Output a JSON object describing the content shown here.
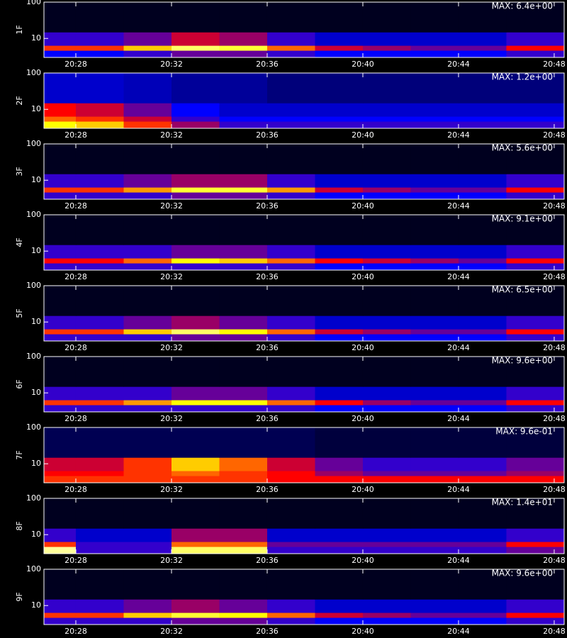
{
  "chart_data": [
    {
      "type": "heatmap",
      "ylabel": "1F",
      "annotation": "MAX: 6.4e+00",
      "x": [
        "20:27",
        "20:29",
        "20:31",
        "20:33",
        "20:35",
        "20:37",
        "20:39",
        "20:41",
        "20:43",
        "20:45",
        "20:47"
      ],
      "y": [
        4,
        5.5,
        7.5,
        30
      ],
      "z": [
        [
          0.25,
          0.25,
          0.3,
          0.35,
          0.35,
          0.3,
          0.25,
          0.25,
          0.25,
          0.25,
          0.3
        ],
        [
          0.55,
          0.55,
          0.7,
          0.85,
          0.8,
          0.6,
          0.45,
          0.4,
          0.35,
          0.35,
          0.5
        ],
        [
          0.3,
          0.3,
          0.35,
          0.45,
          0.4,
          0.3,
          0.2,
          0.2,
          0.2,
          0.2,
          0.3
        ],
        [
          0.03,
          0.03,
          0.03,
          0.03,
          0.03,
          0.03,
          0.03,
          0.03,
          0.03,
          0.03,
          0.03
        ]
      ],
      "xlim": [
        "20:26:40",
        "20:48:25"
      ],
      "xticks": [
        "20:28",
        "20:32",
        "20:36",
        "20:40",
        "20:44",
        "20:48"
      ],
      "ylim": [
        3,
        100
      ],
      "yticks": [
        10,
        100
      ],
      "log_y": true,
      "colormap": [
        "#000000",
        "#0000ff",
        "#ff0000",
        "#ffff00",
        "#ffffff"
      ]
    },
    {
      "type": "heatmap",
      "ylabel": "2F",
      "annotation": "MAX: 1.2e+00",
      "x": [
        "20:27",
        "20:29",
        "20:31",
        "20:33",
        "20:35",
        "20:37",
        "20:39",
        "20:41",
        "20:43",
        "20:45",
        "20:47"
      ],
      "y": [
        4,
        5.5,
        7.5,
        30
      ],
      "z": [
        [
          0.75,
          0.7,
          0.55,
          0.4,
          0.3,
          0.3,
          0.3,
          0.3,
          0.3,
          0.3,
          0.3
        ],
        [
          0.6,
          0.55,
          0.45,
          0.3,
          0.25,
          0.25,
          0.25,
          0.25,
          0.25,
          0.25,
          0.25
        ],
        [
          0.5,
          0.45,
          0.35,
          0.25,
          0.2,
          0.2,
          0.2,
          0.2,
          0.2,
          0.2,
          0.2
        ],
        [
          0.2,
          0.2,
          0.18,
          0.15,
          0.15,
          0.12,
          0.12,
          0.12,
          0.12,
          0.12,
          0.12
        ]
      ],
      "xlim": [
        "20:26:40",
        "20:48:25"
      ],
      "xticks": [
        "20:28",
        "20:32",
        "20:36",
        "20:40",
        "20:44",
        "20:48"
      ],
      "ylim": [
        3,
        100
      ],
      "yticks": [
        10,
        100
      ],
      "log_y": true,
      "colormap": [
        "#000000",
        "#0000ff",
        "#ff0000",
        "#ffff00",
        "#ffffff"
      ]
    },
    {
      "type": "heatmap",
      "ylabel": "3F",
      "annotation": "MAX: 5.6e+00",
      "x": [
        "20:27",
        "20:29",
        "20:31",
        "20:33",
        "20:35",
        "20:37",
        "20:39",
        "20:41",
        "20:43",
        "20:45",
        "20:47"
      ],
      "y": [
        4,
        5.5,
        7.5,
        30
      ],
      "z": [
        [
          0.3,
          0.3,
          0.3,
          0.35,
          0.35,
          0.3,
          0.25,
          0.25,
          0.25,
          0.25,
          0.3
        ],
        [
          0.55,
          0.55,
          0.65,
          0.8,
          0.8,
          0.65,
          0.45,
          0.4,
          0.35,
          0.35,
          0.5
        ],
        [
          0.3,
          0.3,
          0.35,
          0.4,
          0.4,
          0.3,
          0.2,
          0.2,
          0.2,
          0.2,
          0.3
        ],
        [
          0.03,
          0.03,
          0.03,
          0.03,
          0.03,
          0.03,
          0.03,
          0.03,
          0.03,
          0.03,
          0.03
        ]
      ],
      "xlim": [
        "20:26:40",
        "20:48:25"
      ],
      "xticks": [
        "20:28",
        "20:32",
        "20:36",
        "20:40",
        "20:44",
        "20:48"
      ],
      "ylim": [
        3,
        100
      ],
      "yticks": [
        10,
        100
      ],
      "log_y": true,
      "colormap": [
        "#000000",
        "#0000ff",
        "#ff0000",
        "#ffff00",
        "#ffffff"
      ]
    },
    {
      "type": "heatmap",
      "ylabel": "4F",
      "annotation": "MAX: 9.1e+00",
      "x": [
        "20:27",
        "20:29",
        "20:31",
        "20:33",
        "20:35",
        "20:37",
        "20:39",
        "20:41",
        "20:43",
        "20:45",
        "20:47"
      ],
      "y": [
        4,
        5.5,
        7.5,
        30
      ],
      "z": [
        [
          0.3,
          0.3,
          0.3,
          0.3,
          0.3,
          0.3,
          0.25,
          0.25,
          0.25,
          0.25,
          0.3
        ],
        [
          0.5,
          0.5,
          0.6,
          0.75,
          0.7,
          0.6,
          0.5,
          0.45,
          0.4,
          0.35,
          0.5
        ],
        [
          0.3,
          0.3,
          0.3,
          0.35,
          0.35,
          0.3,
          0.2,
          0.2,
          0.2,
          0.2,
          0.3
        ],
        [
          0.03,
          0.03,
          0.03,
          0.03,
          0.03,
          0.03,
          0.03,
          0.03,
          0.03,
          0.03,
          0.03
        ]
      ],
      "xlim": [
        "20:26:40",
        "20:48:25"
      ],
      "xticks": [
        "20:28",
        "20:32",
        "20:36",
        "20:40",
        "20:44",
        "20:48"
      ],
      "ylim": [
        3,
        100
      ],
      "yticks": [
        10,
        100
      ],
      "log_y": true,
      "colormap": [
        "#000000",
        "#0000ff",
        "#ff0000",
        "#ffff00",
        "#ffffff"
      ]
    },
    {
      "type": "heatmap",
      "ylabel": "5F",
      "annotation": "MAX: 6.5e+00",
      "x": [
        "20:27",
        "20:29",
        "20:31",
        "20:33",
        "20:35",
        "20:37",
        "20:39",
        "20:41",
        "20:43",
        "20:45",
        "20:47"
      ],
      "y": [
        4,
        5.5,
        7.5,
        30
      ],
      "z": [
        [
          0.3,
          0.3,
          0.3,
          0.35,
          0.35,
          0.3,
          0.25,
          0.25,
          0.25,
          0.25,
          0.3
        ],
        [
          0.55,
          0.55,
          0.7,
          0.85,
          0.75,
          0.6,
          0.45,
          0.4,
          0.35,
          0.35,
          0.5
        ],
        [
          0.3,
          0.3,
          0.35,
          0.4,
          0.35,
          0.3,
          0.2,
          0.2,
          0.2,
          0.2,
          0.3
        ],
        [
          0.03,
          0.03,
          0.03,
          0.03,
          0.03,
          0.03,
          0.03,
          0.03,
          0.03,
          0.03,
          0.03
        ]
      ],
      "xlim": [
        "20:26:40",
        "20:48:25"
      ],
      "xticks": [
        "20:28",
        "20:32",
        "20:36",
        "20:40",
        "20:44",
        "20:48"
      ],
      "ylim": [
        3,
        100
      ],
      "yticks": [
        10,
        100
      ],
      "log_y": true,
      "colormap": [
        "#000000",
        "#0000ff",
        "#ff0000",
        "#ffff00",
        "#ffffff"
      ]
    },
    {
      "type": "heatmap",
      "ylabel": "6F",
      "annotation": "MAX: 9.6e+00",
      "x": [
        "20:27",
        "20:29",
        "20:31",
        "20:33",
        "20:35",
        "20:37",
        "20:39",
        "20:41",
        "20:43",
        "20:45",
        "20:47"
      ],
      "y": [
        4,
        5.5,
        7.5,
        30
      ],
      "z": [
        [
          0.3,
          0.3,
          0.3,
          0.3,
          0.3,
          0.3,
          0.25,
          0.25,
          0.25,
          0.25,
          0.3
        ],
        [
          0.55,
          0.55,
          0.65,
          0.75,
          0.75,
          0.6,
          0.5,
          0.4,
          0.35,
          0.35,
          0.5
        ],
        [
          0.3,
          0.3,
          0.3,
          0.35,
          0.35,
          0.3,
          0.2,
          0.2,
          0.2,
          0.2,
          0.3
        ],
        [
          0.03,
          0.03,
          0.03,
          0.03,
          0.03,
          0.03,
          0.03,
          0.03,
          0.03,
          0.03,
          0.03
        ]
      ],
      "xlim": [
        "20:26:40",
        "20:48:25"
      ],
      "xticks": [
        "20:28",
        "20:32",
        "20:36",
        "20:40",
        "20:44",
        "20:48"
      ],
      "ylim": [
        3,
        100
      ],
      "yticks": [
        10,
        100
      ],
      "log_y": true,
      "colormap": [
        "#000000",
        "#0000ff",
        "#ff0000",
        "#ffff00",
        "#ffffff"
      ]
    },
    {
      "type": "heatmap",
      "ylabel": "7F",
      "annotation": "MAX: 9.6e-01",
      "x": [
        "20:27",
        "20:29",
        "20:31",
        "20:33",
        "20:35",
        "20:37",
        "20:39",
        "20:41",
        "20:43",
        "20:45",
        "20:47"
      ],
      "y": [
        4,
        5.5,
        7.5,
        30
      ],
      "z": [
        [
          0.55,
          0.55,
          0.55,
          0.55,
          0.55,
          0.5,
          0.5,
          0.5,
          0.5,
          0.5,
          0.5
        ],
        [
          0.5,
          0.5,
          0.55,
          0.6,
          0.55,
          0.5,
          0.4,
          0.35,
          0.35,
          0.35,
          0.4
        ],
        [
          0.45,
          0.45,
          0.55,
          0.7,
          0.6,
          0.45,
          0.35,
          0.3,
          0.3,
          0.3,
          0.35
        ],
        [
          0.08,
          0.08,
          0.08,
          0.08,
          0.08,
          0.08,
          0.06,
          0.06,
          0.06,
          0.06,
          0.06
        ]
      ],
      "xlim": [
        "20:26:40",
        "20:48:25"
      ],
      "xticks": [
        "20:28",
        "20:32",
        "20:36",
        "20:40",
        "20:44",
        "20:48"
      ],
      "ylim": [
        3,
        100
      ],
      "yticks": [
        10,
        100
      ],
      "log_y": true,
      "colormap": [
        "#000000",
        "#0000ff",
        "#ff0000",
        "#ffff00",
        "#ffffff"
      ]
    },
    {
      "type": "heatmap",
      "ylabel": "8F",
      "annotation": "MAX: 1.4e+01",
      "x": [
        "20:27",
        "20:29",
        "20:31",
        "20:33",
        "20:35",
        "20:37",
        "20:39",
        "20:41",
        "20:43",
        "20:45",
        "20:47"
      ],
      "y": [
        4,
        5.5,
        7.5,
        30
      ],
      "z": [
        [
          0.9,
          0.3,
          0.3,
          0.85,
          0.85,
          0.3,
          0.3,
          0.3,
          0.3,
          0.3,
          0.35
        ],
        [
          0.55,
          0.3,
          0.3,
          0.6,
          0.6,
          0.35,
          0.35,
          0.35,
          0.35,
          0.35,
          0.5
        ],
        [
          0.3,
          0.2,
          0.2,
          0.4,
          0.4,
          0.2,
          0.2,
          0.2,
          0.2,
          0.2,
          0.3
        ],
        [
          0.03,
          0.03,
          0.03,
          0.03,
          0.03,
          0.03,
          0.03,
          0.03,
          0.03,
          0.03,
          0.03
        ]
      ],
      "xlim": [
        "20:26:40",
        "20:48:25"
      ],
      "xticks": [
        "20:28",
        "20:32",
        "20:36",
        "20:40",
        "20:44",
        "20:48"
      ],
      "ylim": [
        3,
        100
      ],
      "yticks": [
        10,
        100
      ],
      "log_y": true,
      "colormap": [
        "#000000",
        "#0000ff",
        "#ff0000",
        "#ffff00",
        "#ffffff"
      ]
    },
    {
      "type": "heatmap",
      "ylabel": "9F",
      "annotation": "MAX: 9.6e+00",
      "x": [
        "20:27",
        "20:29",
        "20:31",
        "20:33",
        "20:35",
        "20:37",
        "20:39",
        "20:41",
        "20:43",
        "20:45",
        "20:47"
      ],
      "y": [
        4,
        5.5,
        7.5,
        30
      ],
      "z": [
        [
          0.3,
          0.3,
          0.3,
          0.35,
          0.35,
          0.3,
          0.25,
          0.25,
          0.25,
          0.25,
          0.3
        ],
        [
          0.55,
          0.55,
          0.7,
          0.8,
          0.75,
          0.6,
          0.45,
          0.4,
          0.35,
          0.35,
          0.5
        ],
        [
          0.3,
          0.3,
          0.35,
          0.4,
          0.35,
          0.3,
          0.2,
          0.2,
          0.2,
          0.2,
          0.3
        ],
        [
          0.03,
          0.03,
          0.03,
          0.03,
          0.03,
          0.03,
          0.03,
          0.03,
          0.03,
          0.03,
          0.03
        ]
      ],
      "xlim": [
        "20:26:40",
        "20:48:25"
      ],
      "xticks": [
        "20:28",
        "20:32",
        "20:36",
        "20:40",
        "20:44",
        "20:48"
      ],
      "ylim": [
        3,
        100
      ],
      "yticks": [
        10,
        100
      ],
      "log_y": true,
      "colormap": [
        "#000000",
        "#0000ff",
        "#ff0000",
        "#ffff00",
        "#ffffff"
      ]
    }
  ]
}
